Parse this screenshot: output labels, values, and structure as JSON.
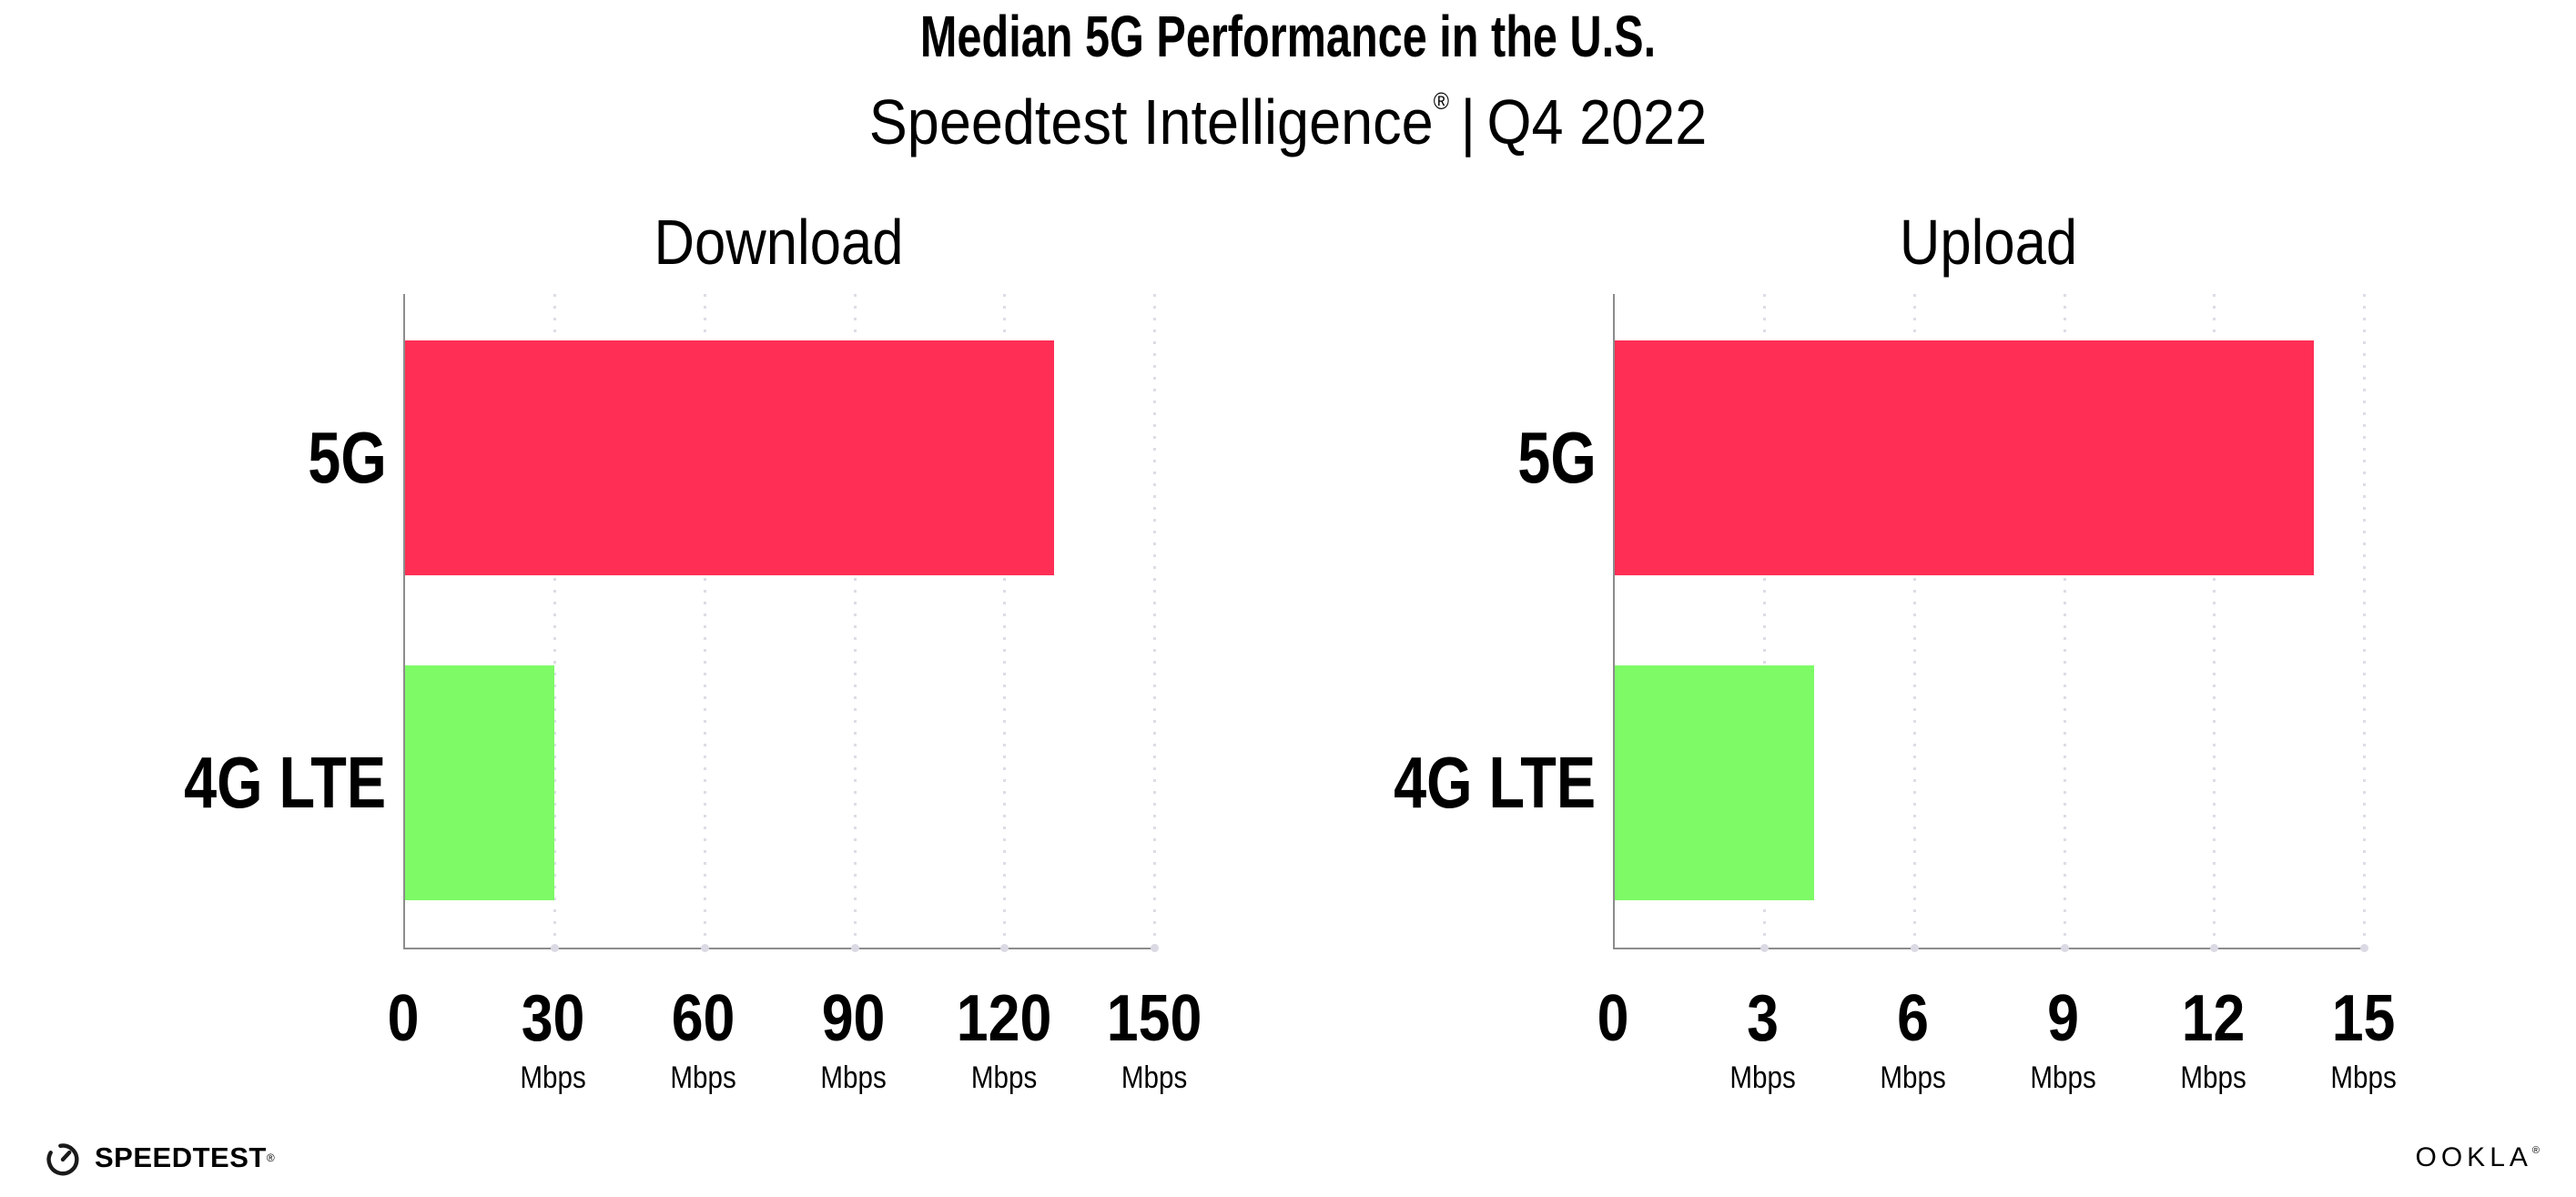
{
  "header": {
    "title": "Median 5G Performance in the U.S.",
    "subtitle_product": "Speedtest Intelligence",
    "registered_mark": "®",
    "subtitle_divider": "|",
    "subtitle_period": "Q4 2022"
  },
  "footer": {
    "speedtest_wordmark": "SPEEDTEST",
    "speedtest_mark": "®",
    "ookla_wordmark": "OOKLA",
    "ookla_mark": "®"
  },
  "colors": {
    "bar_5g": "#FF2E55",
    "bar_4g_lte": "#7DFA66",
    "axis": "#8C8C8C",
    "gridline": "#DEDCE6",
    "text": "#000000"
  },
  "chart_data": [
    {
      "type": "bar",
      "orientation": "horizontal",
      "title": "Download",
      "categories": [
        "5G",
        "4G LTE"
      ],
      "values": [
        130,
        30
      ],
      "unit": "Mbps",
      "xlim": [
        0,
        150
      ],
      "xticks": [
        0,
        30,
        60,
        90,
        120,
        150
      ],
      "colors": [
        "#FF2E55",
        "#7DFA66"
      ],
      "grid": "dotted-vertical",
      "legend": "none"
    },
    {
      "type": "bar",
      "orientation": "horizontal",
      "title": "Upload",
      "categories": [
        "5G",
        "4G LTE"
      ],
      "values": [
        14,
        4
      ],
      "unit": "Mbps",
      "xlim": [
        0,
        15
      ],
      "xticks": [
        0,
        3,
        6,
        9,
        12,
        15
      ],
      "colors": [
        "#FF2E55",
        "#7DFA66"
      ],
      "grid": "dotted-vertical",
      "legend": "none"
    }
  ]
}
